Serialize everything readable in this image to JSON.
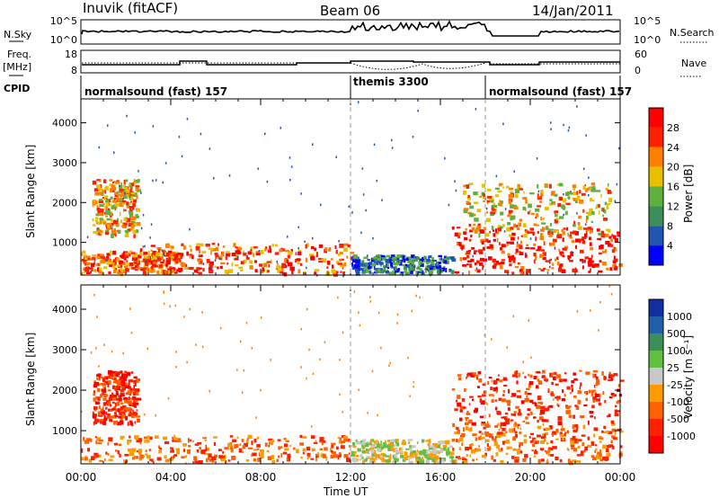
{
  "header": {
    "station": "Inuvik (fitACF)",
    "beam": "Beam 06",
    "date": "14/Jan/2011"
  },
  "top_strip": {
    "left_label": "N.Sky",
    "left_ticks": [
      "10^5",
      "10^0"
    ],
    "right_ticks": [
      "10^5",
      "10^0"
    ],
    "right_label": "N.Search"
  },
  "freq_strip": {
    "left_label_1": "Freq.",
    "left_label_2": "[MHz]",
    "left_ticks": [
      "18",
      "8"
    ],
    "right_ticks": [
      "60",
      "0"
    ],
    "right_label": "Nave"
  },
  "cpid": {
    "label": "CPID",
    "segments": [
      {
        "name": "normalsound (fast) 157",
        "start_hour": 0,
        "end_hour": 12
      },
      {
        "name": "themis 3300",
        "start_hour": 12,
        "end_hour": 18
      },
      {
        "name": "normalsound (fast) 157",
        "start_hour": 18,
        "end_hour": 24
      }
    ]
  },
  "axes": {
    "ylabel": "Slant Range [km]",
    "xlabel": "Time UT",
    "y_ticks": [
      "1000",
      "2000",
      "3000",
      "4000"
    ],
    "x_ticks": [
      "00:00",
      "04:00",
      "08:00",
      "12:00",
      "16:00",
      "20:00",
      "00:00"
    ]
  },
  "colorbars": {
    "power": {
      "label": "Power [dB]",
      "ticks": [
        "4",
        "8",
        "12",
        "16",
        "20",
        "24",
        "28"
      ],
      "colors": [
        "#0000ff",
        "#2055b0",
        "#3c8f5a",
        "#60b040",
        "#e8c000",
        "#ff8000",
        "#ff2000",
        "#ff0000"
      ]
    },
    "velocity": {
      "label": "Velocity [m s⁻¹]",
      "ticks": [
        "1000",
        "500",
        "100",
        "25",
        "-25",
        "-100",
        "-500",
        "-1000"
      ],
      "colors": [
        "#1030a0",
        "#2060a8",
        "#3c8f5a",
        "#60c040",
        "#c8c8c8",
        "#ff9a00",
        "#ff6000",
        "#ff2000",
        "#ff0000"
      ]
    }
  },
  "chart_data": [
    {
      "type": "heatmap",
      "title": "Power [dB]",
      "xlabel": "Time UT",
      "ylabel": "Slant Range [km]",
      "xlim": [
        0,
        24
      ],
      "ylim": [
        180,
        4600
      ],
      "regions": [
        {
          "t0": 0.0,
          "t1": 4.5,
          "r0": 250,
          "r1": 800,
          "level": 24
        },
        {
          "t0": 0.5,
          "t1": 2.5,
          "r0": 1200,
          "r1": 2600,
          "level": 20
        },
        {
          "t0": 2.5,
          "t1": 12.0,
          "r0": 250,
          "r1": 1000,
          "level": 24
        },
        {
          "t0": 12.0,
          "t1": 16.5,
          "r0": 250,
          "r1": 700,
          "level": 8
        },
        {
          "t0": 16.5,
          "t1": 24.0,
          "r0": 250,
          "r1": 1400,
          "level": 28
        },
        {
          "t0": 17.0,
          "t1": 23.5,
          "r0": 1200,
          "r1": 2500,
          "level": 20
        }
      ]
    },
    {
      "type": "heatmap",
      "title": "Velocity [m s⁻¹]",
      "xlabel": "Time UT",
      "ylabel": "Slant Range [km]",
      "xlim": [
        0,
        24
      ],
      "ylim": [
        180,
        4600
      ],
      "regions": [
        {
          "t0": 0.0,
          "t1": 12.0,
          "r0": 250,
          "r1": 900,
          "level": -100
        },
        {
          "t0": 0.5,
          "t1": 2.5,
          "r0": 1200,
          "r1": 2500,
          "level": -500
        },
        {
          "t0": 12.0,
          "t1": 16.5,
          "r0": 250,
          "r1": 800,
          "level": 25
        },
        {
          "t0": 16.5,
          "t1": 24.0,
          "r0": 250,
          "r1": 1200,
          "level": -100
        },
        {
          "t0": 16.5,
          "t1": 24.0,
          "r0": 1200,
          "r1": 2500,
          "level": -500
        }
      ]
    }
  ]
}
